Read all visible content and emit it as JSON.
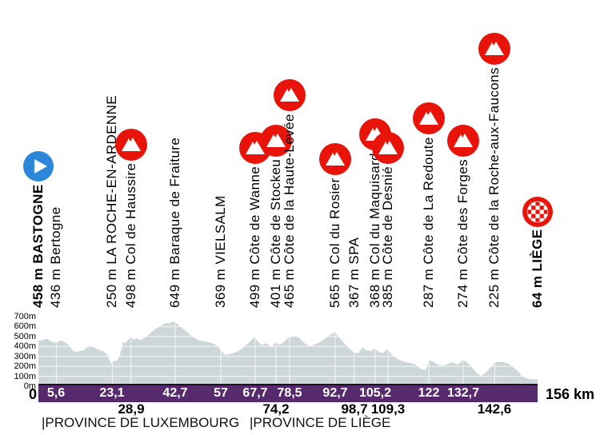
{
  "colors": {
    "profile_fill": "#cdd6d8",
    "gridline": "#ffffff",
    "bar": "#572a6d",
    "bar_top_line": "#141414",
    "climb_icon": "#e8140a",
    "start_icon": "#2d87d8",
    "finish_icon": "#e8140a",
    "bar_text": "#ffffff",
    "text": "#000000"
  },
  "icons": {
    "start": "play-circle-icon",
    "climb": "mountain-circle-icon",
    "finish": "checkered-flag-circle-icon"
  },
  "chart_data": {
    "type": "area",
    "x_unit": "km",
    "x_range": [
      0,
      156
    ],
    "ylim": [
      0,
      700
    ],
    "grid": "horizontal-and-vertical-white-lines-inside-area",
    "y_tick_labels": [
      "700m",
      "600m",
      "500m",
      "400m",
      "300m",
      "200m",
      "100m",
      "0m"
    ],
    "y_tick_values": [
      700,
      600,
      500,
      400,
      300,
      200,
      100,
      0
    ],
    "start_label": "0",
    "end_label": "156 km",
    "km_markers_on_bar": [
      {
        "label": "5,6",
        "km": 5.6
      },
      {
        "label": "23,1",
        "km": 23.1
      },
      {
        "label": "42,7",
        "km": 42.7
      },
      {
        "label": "57",
        "km": 57
      },
      {
        "label": "67,7",
        "km": 67.7
      },
      {
        "label": "78,5",
        "km": 78.5
      },
      {
        "label": "92,7",
        "km": 92.7
      },
      {
        "label": "105,2",
        "km": 105.2
      },
      {
        "label": "122",
        "km": 122
      },
      {
        "label": "132,7",
        "km": 132.7
      }
    ],
    "km_markers_below_bar": [
      {
        "label": "28,9",
        "km": 28.9
      },
      {
        "label": "74,2",
        "km": 74.2
      },
      {
        "label": "98,7",
        "km": 98.7
      },
      {
        "label": "109,3",
        "km": 109.3
      },
      {
        "label": "142,6",
        "km": 142.6
      }
    ],
    "provinces": [
      {
        "label": "|PROVINCE DE LUXEMBOURG",
        "start_km": 1
      },
      {
        "label": "|PROVINCE DE LIÈGE",
        "start_km": 66
      }
    ],
    "waypoints": [
      {
        "label": "458 m BASTOGNE",
        "name": "Bastogne",
        "elevation_m": 458,
        "km": 0,
        "kind": "start",
        "bold": true
      },
      {
        "label": "436 m Bertogne",
        "name": "Bertogne",
        "elevation_m": 436,
        "km": 5.6,
        "kind": "town"
      },
      {
        "label": "250 m LA ROCHE-EN-ARDENNE",
        "name": "La Roche-en-Ardenne",
        "elevation_m": 250,
        "km": 23.1,
        "kind": "town"
      },
      {
        "label": "498 m Col de Haussire",
        "name": "Col de Haussire",
        "elevation_m": 498,
        "km": 28.9,
        "kind": "climb"
      },
      {
        "label": "649 m Baraque de Fraiture",
        "name": "Baraque de Fraiture",
        "elevation_m": 649,
        "km": 42.7,
        "kind": "town"
      },
      {
        "label": "369 m VIELSALM",
        "name": "Vielsalm",
        "elevation_m": 369,
        "km": 57,
        "kind": "town"
      },
      {
        "label": "499 m Côte de Wanne",
        "name": "Côte de Wanne",
        "elevation_m": 499,
        "km": 67.7,
        "kind": "climb"
      },
      {
        "label": "401 m Côte de Stockeu",
        "name": "Côte de Stockeu",
        "elevation_m": 401,
        "km": 74.2,
        "kind": "climb"
      },
      {
        "label": "465 m Côte de la Haute-Levée",
        "name": "Côte de la Haute-Levée",
        "elevation_m": 465,
        "km": 78.5,
        "kind": "climb"
      },
      {
        "label": "565 m Col du Rosier",
        "name": "Col du Rosier",
        "elevation_m": 565,
        "km": 92.7,
        "kind": "climb"
      },
      {
        "label": "367 m SPA",
        "name": "Spa",
        "elevation_m": 367,
        "km": 98.7,
        "kind": "town"
      },
      {
        "label": "368 m Col du Maquisard",
        "name": "Col du Maquisard",
        "elevation_m": 368,
        "km": 105.2,
        "kind": "climb"
      },
      {
        "label": "385 m Côte de Desnié",
        "name": "Côte de Desnié",
        "elevation_m": 385,
        "km": 109.3,
        "kind": "climb"
      },
      {
        "label": "287 m Côte de La Redoute",
        "name": "Côte de La Redoute",
        "elevation_m": 287,
        "km": 122,
        "kind": "climb"
      },
      {
        "label": "274 m Côte des Forges",
        "name": "Côte des Forges",
        "elevation_m": 274,
        "km": 132.7,
        "kind": "climb"
      },
      {
        "label": "225 m Côte de la Roche-aux-Faucons",
        "name": "Côte de la Roche-aux-Faucons",
        "elevation_m": 225,
        "km": 142.6,
        "kind": "climb"
      },
      {
        "label": "64 m LIÈGE",
        "name": "Liège",
        "elevation_m": 64,
        "km": 156,
        "kind": "finish",
        "bold": true
      }
    ],
    "profile_points": [
      [
        0,
        458
      ],
      [
        1.2,
        465
      ],
      [
        2.5,
        478
      ],
      [
        3.8,
        455
      ],
      [
        4.6,
        442
      ],
      [
        5.6,
        436
      ],
      [
        6.8,
        460
      ],
      [
        8,
        450
      ],
      [
        9.5,
        415
      ],
      [
        11,
        348
      ],
      [
        12.5,
        350
      ],
      [
        14,
        358
      ],
      [
        15.5,
        395
      ],
      [
        16.3,
        412
      ],
      [
        17.5,
        388
      ],
      [
        19,
        362
      ],
      [
        20.5,
        348
      ],
      [
        21.8,
        300
      ],
      [
        22.6,
        226
      ],
      [
        23.4,
        250
      ],
      [
        24.6,
        255
      ],
      [
        25.6,
        330
      ],
      [
        26.5,
        450
      ],
      [
        27.2,
        432
      ],
      [
        28.2,
        470
      ],
      [
        28.9,
        498
      ],
      [
        29.6,
        468
      ],
      [
        30.8,
        480
      ],
      [
        32,
        462
      ],
      [
        33.5,
        495
      ],
      [
        35.5,
        548
      ],
      [
        37.5,
        595
      ],
      [
        39.3,
        628
      ],
      [
        41,
        638
      ],
      [
        42.2,
        649
      ],
      [
        43,
        640
      ],
      [
        44,
        610
      ],
      [
        45.5,
        570
      ],
      [
        47.5,
        515
      ],
      [
        49.5,
        470
      ],
      [
        51.5,
        452
      ],
      [
        53.5,
        442
      ],
      [
        55,
        425
      ],
      [
        56.2,
        395
      ],
      [
        57.3,
        350
      ],
      [
        58.3,
        315
      ],
      [
        59.5,
        320
      ],
      [
        61,
        335
      ],
      [
        63,
        362
      ],
      [
        65,
        415
      ],
      [
        66.5,
        462
      ],
      [
        67.5,
        499
      ],
      [
        68.4,
        455
      ],
      [
        69.8,
        415
      ],
      [
        71.2,
        433
      ],
      [
        72.9,
        392
      ],
      [
        74.1,
        450
      ],
      [
        74.9,
        416
      ],
      [
        76.2,
        430
      ],
      [
        77.6,
        472
      ],
      [
        78.8,
        500
      ],
      [
        80.2,
        506
      ],
      [
        81.6,
        486
      ],
      [
        83,
        435
      ],
      [
        84.8,
        402
      ],
      [
        86.4,
        420
      ],
      [
        88,
        443
      ],
      [
        90,
        490
      ],
      [
        91.5,
        522
      ],
      [
        92.6,
        545
      ],
      [
        93.9,
        495
      ],
      [
        95.5,
        435
      ],
      [
        97.2,
        378
      ],
      [
        98.6,
        340
      ],
      [
        100,
        332
      ],
      [
        101.3,
        390
      ],
      [
        102.6,
        362
      ],
      [
        104,
        352
      ],
      [
        105.2,
        382
      ],
      [
        106.4,
        342
      ],
      [
        107.6,
        332
      ],
      [
        109.1,
        374
      ],
      [
        110.6,
        310
      ],
      [
        112.5,
        270
      ],
      [
        114.5,
        243
      ],
      [
        116.5,
        233
      ],
      [
        118,
        213
      ],
      [
        119.6,
        172
      ],
      [
        121,
        163
      ],
      [
        122.1,
        263
      ],
      [
        123.4,
        247
      ],
      [
        125,
        216
      ],
      [
        126.6,
        206
      ],
      [
        128,
        227
      ],
      [
        129.5,
        241
      ],
      [
        131,
        215
      ],
      [
        132.6,
        263
      ],
      [
        134,
        240
      ],
      [
        135.6,
        186
      ],
      [
        137.2,
        128
      ],
      [
        138.4,
        104
      ],
      [
        139.9,
        140
      ],
      [
        141.2,
        188
      ],
      [
        142.7,
        240
      ],
      [
        144.6,
        247
      ],
      [
        146.4,
        237
      ],
      [
        148,
        203
      ],
      [
        149.6,
        156
      ],
      [
        151.2,
        100
      ],
      [
        152.6,
        77
      ],
      [
        154,
        71
      ],
      [
        156,
        68
      ]
    ]
  }
}
